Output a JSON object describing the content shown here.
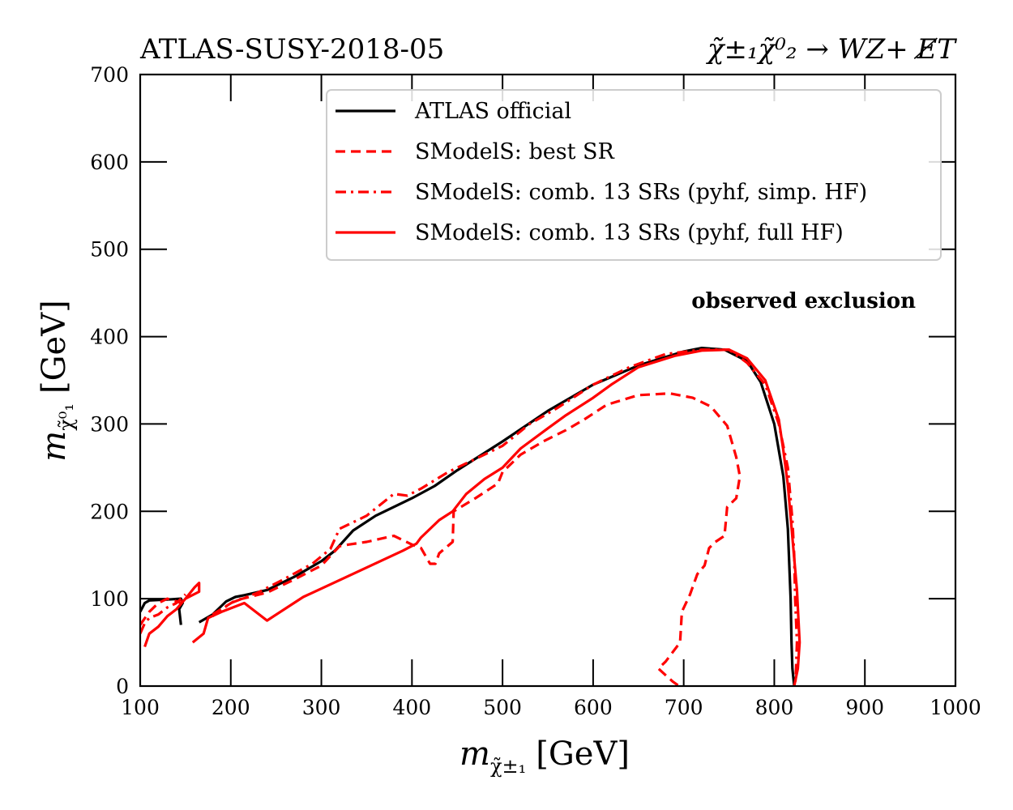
{
  "chart_data": {
    "type": "line",
    "title_left": "ATLAS-SUSY-2018-05",
    "title_right": "χ̃±₁χ̃⁰₂ → WZ+ E̸T",
    "xlabel": {
      "var": "m",
      "sub": "χ̃±₁",
      "unit": "[GeV]"
    },
    "ylabel": {
      "var": "m",
      "sub": "χ̃⁰₁",
      "unit": "[GeV]"
    },
    "xlim": [
      100,
      1000
    ],
    "ylim": [
      0,
      700
    ],
    "xticks": [
      100,
      200,
      300,
      400,
      500,
      600,
      700,
      800,
      900,
      1000
    ],
    "yticks": [
      0,
      100,
      200,
      300,
      400,
      500,
      600,
      700
    ],
    "grid": false,
    "legend_position": "top-right",
    "annotation": "observed exclusion",
    "series": [
      {
        "name": "ATLAS official",
        "color": "#000000",
        "style": "solid",
        "segments": [
          [
            [
              100,
              85
            ],
            [
              105,
              95
            ],
            [
              110,
              98
            ],
            [
              130,
              99
            ],
            [
              145,
              100
            ],
            [
              147,
              95
            ],
            [
              143,
              88
            ],
            [
              145,
              70
            ]
          ],
          [
            [
              165,
              73
            ],
            [
              180,
              82
            ],
            [
              195,
              97
            ],
            [
              205,
              102
            ],
            [
              215,
              104
            ],
            [
              240,
              110
            ],
            [
              270,
              125
            ],
            [
              300,
              143
            ],
            [
              315,
              155
            ],
            [
              335,
              178
            ],
            [
              360,
              195
            ],
            [
              400,
              215
            ],
            [
              425,
              229
            ],
            [
              450,
              247
            ],
            [
              500,
              280
            ],
            [
              550,
              315
            ],
            [
              600,
              345
            ],
            [
              650,
              367
            ],
            [
              700,
              383
            ],
            [
              720,
              387
            ],
            [
              745,
              385
            ],
            [
              770,
              372
            ],
            [
              785,
              348
            ],
            [
              800,
              300
            ],
            [
              810,
              240
            ],
            [
              815,
              180
            ],
            [
              818,
              100
            ],
            [
              819,
              50
            ],
            [
              820,
              20
            ],
            [
              822,
              0
            ]
          ]
        ]
      },
      {
        "name": "SModelS: best SR",
        "color": "#ff0000",
        "style": "dashed",
        "segments": [
          [
            [
              100,
              70
            ],
            [
              110,
              85
            ],
            [
              120,
              95
            ],
            [
              130,
              100
            ],
            [
              140,
              97
            ],
            [
              145,
              95
            ],
            [
              150,
              102
            ]
          ],
          [
            [
              180,
              82
            ],
            [
              205,
              98
            ],
            [
              240,
              107
            ],
            [
              270,
              122
            ],
            [
              300,
              138
            ],
            [
              320,
              160
            ],
            [
              330,
              162
            ],
            [
              350,
              165
            ],
            [
              380,
              172
            ],
            [
              400,
              162
            ],
            [
              410,
              158
            ],
            [
              420,
              140
            ],
            [
              426,
              140
            ],
            [
              430,
              152
            ],
            [
              445,
              165
            ],
            [
              446,
              200
            ],
            [
              470,
              215
            ],
            [
              495,
              232
            ],
            [
              500,
              245
            ],
            [
              520,
              265
            ],
            [
              545,
              280
            ],
            [
              570,
              293
            ],
            [
              590,
              305
            ],
            [
              615,
              322
            ],
            [
              650,
              333
            ],
            [
              685,
              335
            ],
            [
              710,
              330
            ],
            [
              730,
              320
            ],
            [
              748,
              298
            ],
            [
              758,
              262
            ],
            [
              762,
              240
            ],
            [
              758,
              215
            ],
            [
              748,
              205
            ],
            [
              745,
              172
            ],
            [
              735,
              165
            ],
            [
              728,
              158
            ],
            [
              723,
              138
            ],
            [
              715,
              128
            ],
            [
              707,
              105
            ],
            [
              698,
              85
            ],
            [
              696,
              50
            ],
            [
              680,
              28
            ],
            [
              672,
              20
            ],
            [
              688,
              5
            ],
            [
              695,
              0
            ]
          ]
        ]
      },
      {
        "name": "SModelS: comb. 13 SRs (pyhf, simp. HF)",
        "color": "#ff0000",
        "style": "dashdot",
        "segments": [
          [
            [
              100,
              60
            ],
            [
              105,
              72
            ],
            [
              110,
              78
            ],
            [
              120,
              82
            ],
            [
              130,
              90
            ],
            [
              140,
              95
            ],
            [
              150,
              105
            ]
          ],
          [
            [
              180,
              80
            ],
            [
              200,
              95
            ],
            [
              230,
              107
            ],
            [
              260,
              123
            ],
            [
              290,
              140
            ],
            [
              310,
              157
            ],
            [
              320,
              180
            ],
            [
              350,
              195
            ],
            [
              380,
              220
            ],
            [
              395,
              218
            ],
            [
              410,
              226
            ],
            [
              440,
              245
            ],
            [
              470,
              260
            ],
            [
              500,
              275
            ],
            [
              530,
              300
            ],
            [
              560,
              318
            ],
            [
              600,
              345
            ],
            [
              640,
              365
            ],
            [
              680,
              380
            ],
            [
              720,
              385
            ],
            [
              750,
              385
            ],
            [
              770,
              370
            ],
            [
              790,
              345
            ],
            [
              805,
              300
            ],
            [
              815,
              250
            ],
            [
              820,
              190
            ],
            [
              822,
              150
            ],
            [
              823,
              100
            ],
            [
              825,
              50
            ],
            [
              824,
              20
            ],
            [
              823,
              0
            ]
          ]
        ]
      },
      {
        "name": "SModelS: comb. 13 SRs (pyhf, full HF)",
        "color": "#ff0000",
        "style": "solid",
        "segments": [
          [
            [
              105,
              45
            ],
            [
              110,
              60
            ],
            [
              120,
              68
            ],
            [
              130,
              80
            ],
            [
              140,
              88
            ],
            [
              150,
              100
            ],
            [
              160,
              113
            ],
            [
              165,
              118
            ],
            [
              165,
              108
            ],
            [
              150,
              100
            ]
          ],
          [
            [
              158,
              50
            ],
            [
              170,
              60
            ],
            [
              175,
              78
            ],
            [
              190,
              85
            ],
            [
              215,
              95
            ],
            [
              240,
              75
            ],
            [
              280,
              102
            ],
            [
              330,
              126
            ],
            [
              390,
              155
            ],
            [
              405,
              163
            ],
            [
              410,
              170
            ],
            [
              430,
              190
            ],
            [
              445,
              200
            ],
            [
              460,
              220
            ],
            [
              480,
              237
            ],
            [
              500,
              250
            ],
            [
              520,
              272
            ],
            [
              550,
              295
            ],
            [
              570,
              310
            ],
            [
              600,
              330
            ],
            [
              620,
              345
            ],
            [
              650,
              365
            ],
            [
              690,
              378
            ],
            [
              720,
              384
            ],
            [
              750,
              385
            ],
            [
              770,
              375
            ],
            [
              790,
              350
            ],
            [
              805,
              305
            ],
            [
              810,
              270
            ],
            [
              815,
              230
            ],
            [
              820,
              170
            ],
            [
              825,
              110
            ],
            [
              828,
              50
            ],
            [
              826,
              20
            ],
            [
              822,
              0
            ]
          ]
        ]
      }
    ]
  }
}
